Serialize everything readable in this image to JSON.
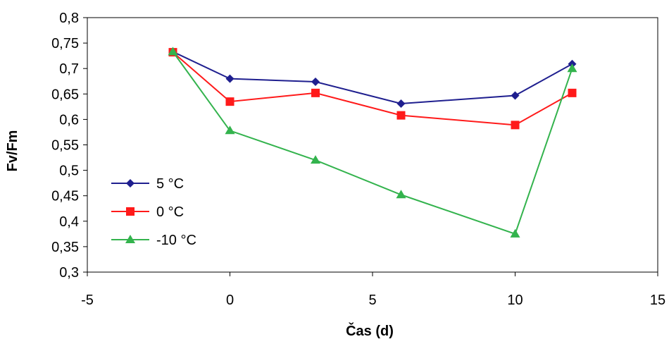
{
  "chart_data": {
    "type": "line",
    "xlabel": "Čas (d)",
    "ylabel": "Fv/Fm",
    "xlim": [
      -5,
      15
    ],
    "ylim": [
      0.3,
      0.8
    ],
    "x_ticks": [
      "-5",
      "0",
      "5",
      "10",
      "15"
    ],
    "y_ticks": [
      "0,3",
      "0,35",
      "0,4",
      "0,45",
      "0,5",
      "0,55",
      "0,6",
      "0,65",
      "0,7",
      "0,75",
      "0,8"
    ],
    "grid": false,
    "legend_position": "left",
    "series": [
      {
        "name": "5 °C",
        "color": "#1f1f8f",
        "marker": "diamond",
        "x": [
          -2,
          0,
          3,
          6,
          10,
          12
        ],
        "y": [
          0.733,
          0.68,
          0.674,
          0.631,
          0.647,
          0.709
        ]
      },
      {
        "name": "0 °C",
        "color": "#ff1a1a",
        "marker": "square",
        "x": [
          -2,
          0,
          3,
          6,
          10,
          12
        ],
        "y": [
          0.732,
          0.635,
          0.652,
          0.608,
          0.589,
          0.652
        ]
      },
      {
        "name": "-10 °C",
        "color": "#33b34d",
        "marker": "triangle",
        "x": [
          -2,
          0,
          3,
          6,
          10,
          12
        ],
        "y": [
          0.733,
          0.578,
          0.52,
          0.452,
          0.375,
          0.7
        ]
      }
    ]
  }
}
